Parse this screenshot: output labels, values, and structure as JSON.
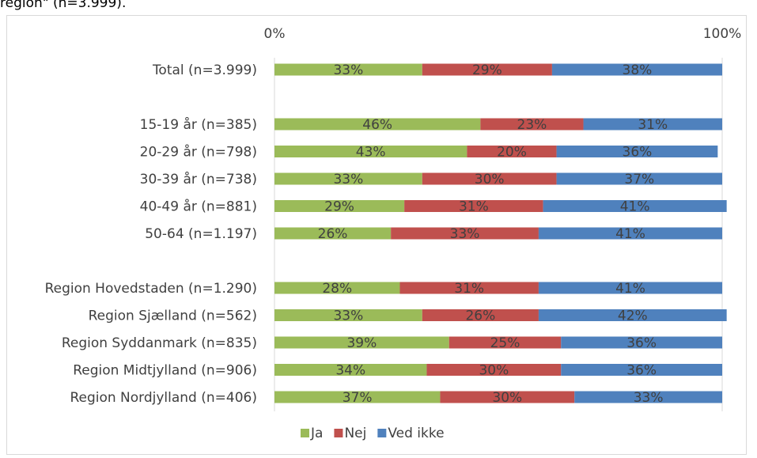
{
  "header_fragment": "region\" (n=3.999).",
  "chart_data": {
    "type": "bar",
    "orientation": "horizontal",
    "stacked": true,
    "xlim": [
      0,
      100
    ],
    "x_ticks": [
      "0%",
      "100%"
    ],
    "legend_position": "bottom",
    "categories": [
      "Total (n=3.999)",
      "",
      "15-19 år (n=385)",
      "20-29 år (n=798)",
      "30-39 år (n=738)",
      "40-49 år (n=881)",
      "50-64 (n=1.197)",
      "",
      "Region Hovedstaden (n=1.290)",
      "Region Sjælland (n=562)",
      "Region Syddanmark (n=835)",
      "Region Midtjylland (n=906)",
      "Region Nordjylland (n=406)"
    ],
    "series": [
      {
        "name": "Ja",
        "color": "#9bbb59",
        "values": [
          33,
          null,
          46,
          43,
          33,
          29,
          26,
          null,
          28,
          33,
          39,
          34,
          37
        ]
      },
      {
        "name": "Nej",
        "color": "#c0504d",
        "values": [
          29,
          null,
          23,
          20,
          30,
          31,
          33,
          null,
          31,
          26,
          25,
          30,
          30
        ]
      },
      {
        "name": "Ved ikke",
        "color": "#4f81bd",
        "values": [
          38,
          null,
          31,
          36,
          37,
          41,
          41,
          null,
          41,
          42,
          36,
          36,
          33
        ]
      }
    ]
  }
}
